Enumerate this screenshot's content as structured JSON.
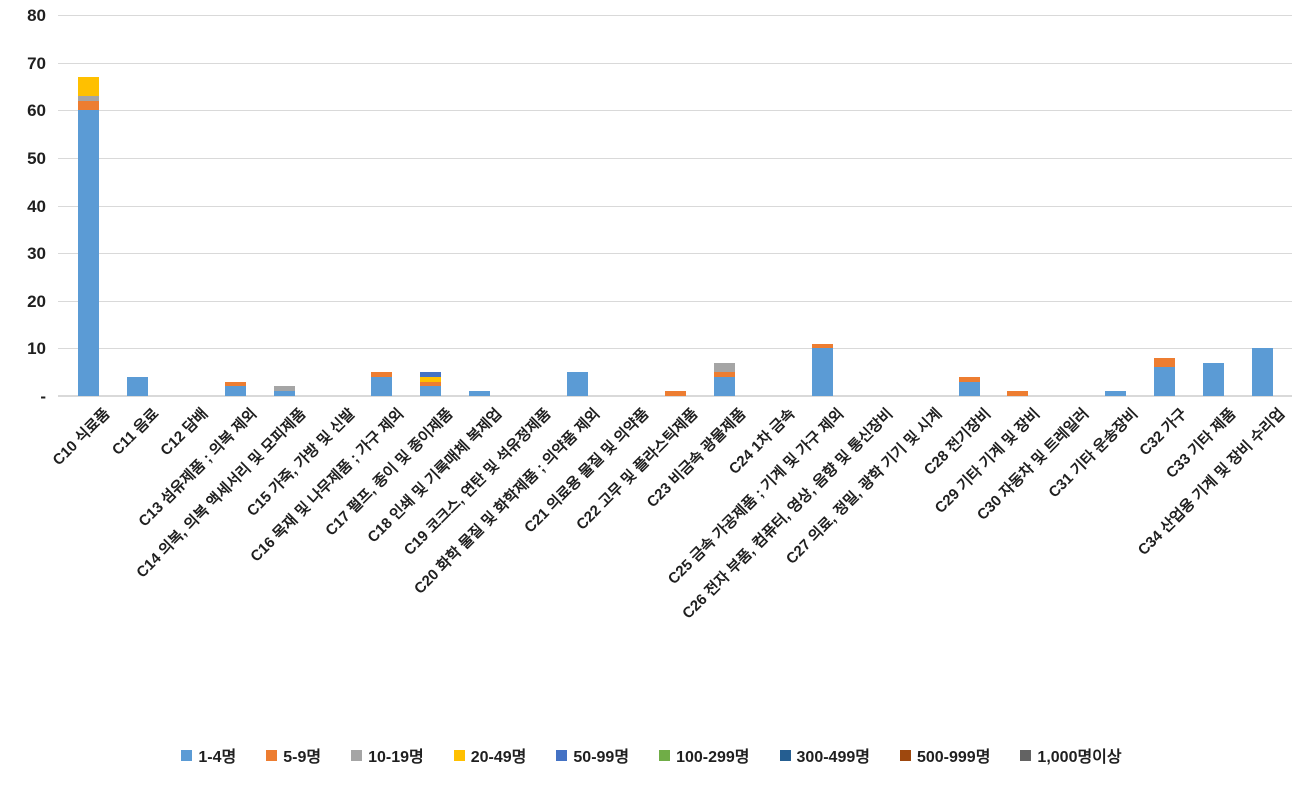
{
  "chart_data": {
    "type": "bar",
    "stacked": true,
    "title": "",
    "xlabel": "",
    "ylabel": "",
    "ylim": [
      0,
      80
    ],
    "grid": true,
    "legend_position": "bottom",
    "y_ticks": [
      {
        "label": "80",
        "value": 80
      },
      {
        "label": "70",
        "value": 70
      },
      {
        "label": "60",
        "value": 60
      },
      {
        "label": "50",
        "value": 50
      },
      {
        "label": "40",
        "value": 40
      },
      {
        "label": "30",
        "value": 30
      },
      {
        "label": "20",
        "value": 20
      },
      {
        "label": "10",
        "value": 10
      },
      {
        "label": "-",
        "value": 0
      }
    ],
    "categories": [
      "C10 식료품",
      "C11 음료",
      "C12 담배",
      "C13 섬유제품 ; 의복 제외",
      "C14 의복, 의복 액세서리 및 모피제품",
      "C15 가죽, 가방 및 신발",
      "C16 목재 및 나무제품 ; 가구 제외",
      "C17 펄프, 종이 및 종이제품",
      "C18 인쇄 및 기록매체 복제업",
      "C19 코크스, 연탄 및 석유정제품",
      "C20 화학 물질 및 화학제품 ; 의약품 제외",
      "C21 의료용 물질 및 의약품",
      "C22 고무 및 플라스틱제품",
      "C23 비금속 광물제품",
      "C24 1차 금속",
      "C25 금속 가공제품 ; 기계 및 가구 제외",
      "C26 전자 부품, 컴퓨터, 영상, 음향 및 통신장비",
      "C27 의료, 정밀, 광학 기기 및 시계",
      "C28 전기장비",
      "C29 기타 기계 및 장비",
      "C30 자동차 및 트레일러",
      "C31 기타 운송장비",
      "C32 가구",
      "C33 기타 제품",
      "C34 산업용 기계 및 장비 수리업"
    ],
    "series": [
      {
        "name": "1-4명",
        "color": "#5B9BD5",
        "values": [
          60,
          4,
          0,
          2,
          1,
          0,
          4,
          2,
          1,
          0,
          5,
          0,
          0,
          4,
          0,
          10,
          0,
          0,
          3,
          0,
          0,
          1,
          6,
          7,
          10
        ]
      },
      {
        "name": "5-9명",
        "color": "#ED7D31",
        "values": [
          2,
          0,
          0,
          1,
          0,
          0,
          1,
          1,
          0,
          0,
          0,
          0,
          1,
          1,
          0,
          1,
          0,
          0,
          1,
          1,
          0,
          0,
          2,
          0,
          0
        ]
      },
      {
        "name": "10-19명",
        "color": "#A5A5A5",
        "values": [
          1,
          0,
          0,
          0,
          1,
          0,
          0,
          0,
          0,
          0,
          0,
          0,
          0,
          2,
          0,
          0,
          0,
          0,
          0,
          0,
          0,
          0,
          0,
          0,
          0
        ]
      },
      {
        "name": "20-49명",
        "color": "#FFC000",
        "values": [
          4,
          0,
          0,
          0,
          0,
          0,
          0,
          1,
          0,
          0,
          0,
          0,
          0,
          0,
          0,
          0,
          0,
          0,
          0,
          0,
          0,
          0,
          0,
          0,
          0
        ]
      },
      {
        "name": "50-99명",
        "color": "#4472C4",
        "values": [
          0,
          0,
          0,
          0,
          0,
          0,
          0,
          1,
          0,
          0,
          0,
          0,
          0,
          0,
          0,
          0,
          0,
          0,
          0,
          0,
          0,
          0,
          0,
          0,
          0
        ]
      },
      {
        "name": "100-299명",
        "color": "#70AD47",
        "values": [
          0,
          0,
          0,
          0,
          0,
          0,
          0,
          0,
          0,
          0,
          0,
          0,
          0,
          0,
          0,
          0,
          0,
          0,
          0,
          0,
          0,
          0,
          0,
          0,
          0
        ]
      },
      {
        "name": "300-499명",
        "color": "#255E91",
        "values": [
          0,
          0,
          0,
          0,
          0,
          0,
          0,
          0,
          0,
          0,
          0,
          0,
          0,
          0,
          0,
          0,
          0,
          0,
          0,
          0,
          0,
          0,
          0,
          0,
          0
        ]
      },
      {
        "name": "500-999명",
        "color": "#9E480E",
        "values": [
          0,
          0,
          0,
          0,
          0,
          0,
          0,
          0,
          0,
          0,
          0,
          0,
          0,
          0,
          0,
          0,
          0,
          0,
          0,
          0,
          0,
          0,
          0,
          0,
          0
        ]
      },
      {
        "name": "1,000명이상",
        "color": "#636363",
        "values": [
          0,
          0,
          0,
          0,
          0,
          0,
          0,
          0,
          0,
          0,
          0,
          0,
          0,
          0,
          0,
          0,
          0,
          0,
          0,
          0,
          0,
          0,
          0,
          0,
          0
        ]
      }
    ],
    "layout": {
      "axis_color": "#d9d9d9",
      "gridline_color": "#d9d9d9",
      "background": "#ffffff"
    }
  }
}
